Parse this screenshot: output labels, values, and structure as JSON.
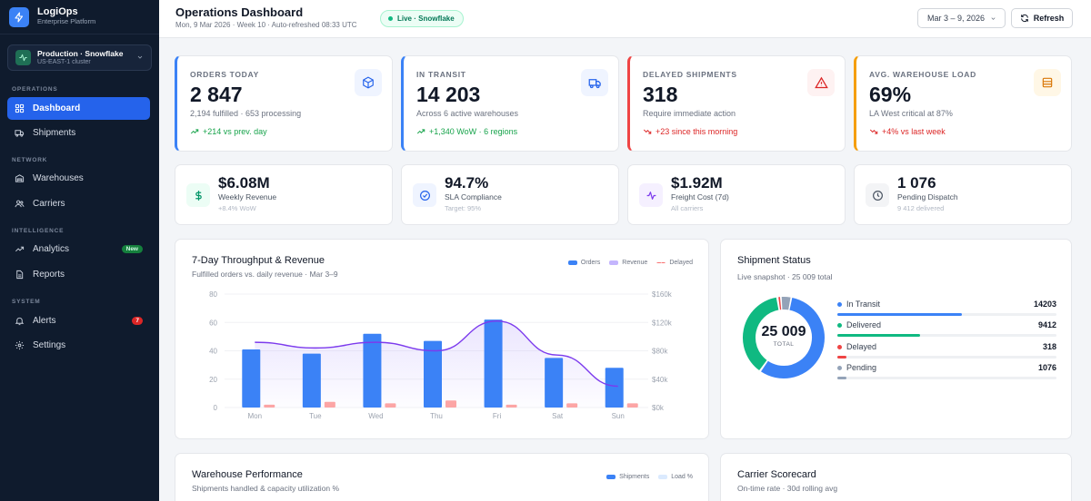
{
  "brand": {
    "name": "LogiOps",
    "subtitle": "Enterprise Platform"
  },
  "environment": {
    "name": "Production · Snowflake",
    "cluster": "US-EAST-1 cluster"
  },
  "sidebar": {
    "sections": [
      {
        "label": "OPERATIONS"
      },
      {
        "label": "NETWORK"
      },
      {
        "label": "INTELLIGENCE"
      },
      {
        "label": "SYSTEM"
      }
    ],
    "items": [
      {
        "label": "Dashboard",
        "icon": "grid-icon",
        "active": true
      },
      {
        "label": "Shipments",
        "icon": "truck-icon"
      },
      {
        "label": "Warehouses",
        "icon": "warehouse-icon"
      },
      {
        "label": "Carriers",
        "icon": "users-icon"
      },
      {
        "label": "Analytics",
        "icon": "trend-icon",
        "badge": "New"
      },
      {
        "label": "Reports",
        "icon": "document-icon"
      },
      {
        "label": "Alerts",
        "icon": "bell-icon",
        "badge": "7"
      },
      {
        "label": "Settings",
        "icon": "gear-icon"
      }
    ]
  },
  "header": {
    "title": "Operations Dashboard",
    "subtitle": "Mon, 9 Mar 2026 · Week 10 · Auto-refreshed 08:33 UTC",
    "live": "Live · Snowflake",
    "date_range": "Mar 3 – 9, 2026",
    "refresh_label": "Refresh"
  },
  "kpis": [
    {
      "label": "ORDERS TODAY",
      "value": "2 847",
      "sub": "2,194 fulfilled · 653 processing",
      "trend": "+214 vs prev. day",
      "accent": "#3b82f6",
      "trend_color": "#16a34a",
      "icon": "box-icon",
      "icon_bg": "#eff4ff",
      "icon_color": "#2563eb",
      "trend_dir": "up"
    },
    {
      "label": "IN TRANSIT",
      "value": "14 203",
      "sub": "Across 6 active warehouses",
      "trend": "+1,340 WoW · 6 regions",
      "accent": "#3b82f6",
      "trend_color": "#16a34a",
      "icon": "truck-icon",
      "icon_bg": "#eff4ff",
      "icon_color": "#2563eb",
      "trend_dir": "up"
    },
    {
      "label": "DELAYED SHIPMENTS",
      "value": "318",
      "sub": "Require immediate action",
      "trend": "+23 since this morning",
      "accent": "#ef4444",
      "trend_color": "#dc2626",
      "icon": "warning-icon",
      "icon_bg": "#fef2f2",
      "icon_color": "#dc2626",
      "trend_dir": "down"
    },
    {
      "label": "AVG. WAREHOUSE LOAD",
      "value": "69%",
      "sub": "LA West critical at 87%",
      "trend": "+4% vs last week",
      "accent": "#f59e0b",
      "trend_color": "#dc2626",
      "icon": "warehouse-icon",
      "icon_bg": "#fff7e6",
      "icon_color": "#d97706",
      "trend_dir": "down"
    }
  ],
  "metrics": [
    {
      "value": "$6.08M",
      "label": "Weekly Revenue",
      "sub": "+8.4% WoW",
      "icon": "dollar-icon",
      "icon_bg": "#ecfdf5",
      "icon_color": "#059669"
    },
    {
      "value": "94.7%",
      "label": "SLA Compliance",
      "sub": "Target: 95%",
      "icon": "check-circle-icon",
      "icon_bg": "#eff4ff",
      "icon_color": "#2563eb"
    },
    {
      "value": "$1.92M",
      "label": "Freight Cost (7d)",
      "sub": "All carriers",
      "icon": "pulse-icon",
      "icon_bg": "#f5f0ff",
      "icon_color": "#7c3aed"
    },
    {
      "value": "1 076",
      "label": "Pending Dispatch",
      "sub": "9 412 delivered",
      "icon": "clock-icon",
      "icon_bg": "#f3f4f6",
      "icon_color": "#4b5563"
    }
  ],
  "throughput": {
    "title": "7-Day Throughput & Revenue",
    "subtitle": "Fulfilled orders vs. daily revenue · Mar 3–9",
    "legend": [
      "Orders",
      "Revenue",
      "Delayed"
    ]
  },
  "shipment_status": {
    "title": "Shipment Status",
    "subtitle": "Live snapshot · 25 009 total",
    "total": "25 009",
    "total_label": "TOTAL",
    "rows": [
      {
        "label": "In Transit",
        "value": 14203,
        "display": "14203",
        "color": "#3b82f6"
      },
      {
        "label": "Delivered",
        "value": 9412,
        "display": "9412",
        "color": "#10b981"
      },
      {
        "label": "Delayed",
        "value": 318,
        "display": "318",
        "color": "#ef4444"
      },
      {
        "label": "Pending",
        "value": 1076,
        "display": "1076",
        "color": "#94a3b8"
      }
    ]
  },
  "warehouse_perf": {
    "title": "Warehouse Performance",
    "subtitle": "Shipments handled & capacity utilization %",
    "legend": [
      "Shipments",
      "Load %"
    ]
  },
  "carrier_scorecard": {
    "title": "Carrier Scorecard",
    "subtitle": "On-time rate · 30d rolling avg"
  },
  "chart_data": {
    "type": "bar",
    "title": "7-Day Throughput & Revenue",
    "categories": [
      "Mon",
      "Tue",
      "Wed",
      "Thu",
      "Fri",
      "Sat",
      "Sun"
    ],
    "y_left": {
      "min": 0,
      "max": 80,
      "ticks": [
        "0",
        "20",
        "40",
        "60",
        "80"
      ]
    },
    "y_right": {
      "min": 0,
      "max": 160000,
      "ticks": [
        "$0k",
        "$40k",
        "$80k",
        "$120k",
        "$160k"
      ]
    },
    "series": [
      {
        "name": "Orders",
        "kind": "bar",
        "axis": "left",
        "color": "#3b82f6",
        "values": [
          41,
          38,
          52,
          47,
          62,
          35,
          28
        ]
      },
      {
        "name": "Delayed",
        "kind": "bar",
        "axis": "left",
        "color": "#fca5a5",
        "values": [
          2,
          4,
          3,
          5,
          2,
          3,
          3
        ]
      },
      {
        "name": "Revenue",
        "kind": "line",
        "axis": "right",
        "color": "#7c3aed",
        "values": [
          92000,
          84000,
          92000,
          80000,
          122000,
          74000,
          30000
        ]
      }
    ]
  }
}
